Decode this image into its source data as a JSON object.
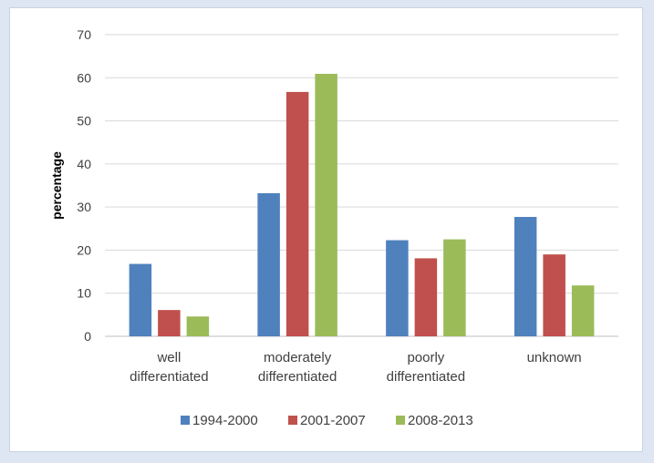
{
  "chart_data": {
    "type": "bar",
    "title": "",
    "xlabel": "",
    "ylabel": "percentage",
    "ylim": [
      0,
      70
    ],
    "yticks": [
      0,
      10,
      20,
      30,
      40,
      50,
      60,
      70
    ],
    "grid": true,
    "legend_position": "bottom",
    "categories": [
      [
        "well",
        "differentiated"
      ],
      [
        "moderately",
        "differentiated"
      ],
      [
        "poorly",
        "differentiated"
      ],
      [
        "unknown"
      ]
    ],
    "series": [
      {
        "name": "1994-2000",
        "color": "#4f81bd",
        "values": [
          16.8,
          33.2,
          22.3,
          27.7
        ]
      },
      {
        "name": "2001-2007",
        "color": "#c0504d",
        "values": [
          6.1,
          56.7,
          18.1,
          19.0
        ]
      },
      {
        "name": "2008-2013",
        "color": "#9bbb59",
        "values": [
          4.6,
          60.9,
          22.5,
          11.8
        ]
      }
    ]
  }
}
